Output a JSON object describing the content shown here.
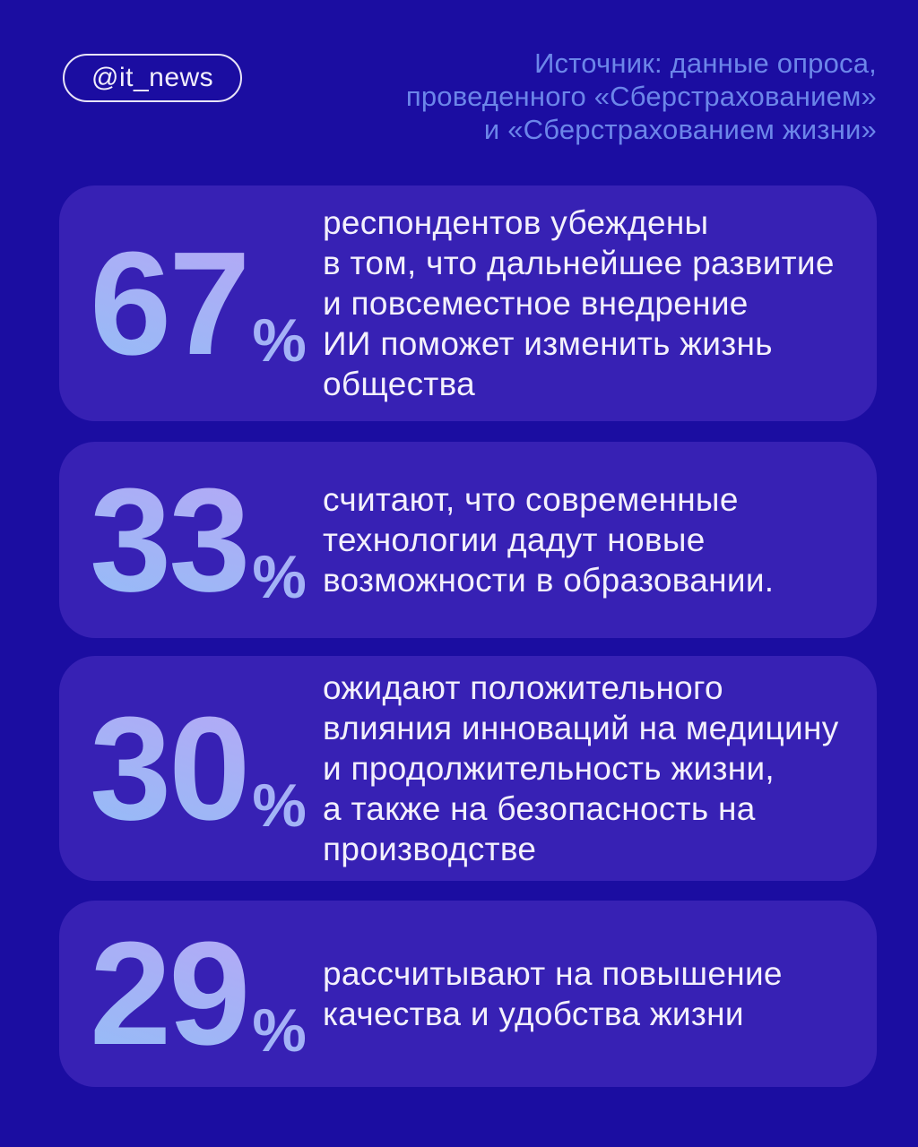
{
  "colors": {
    "background": "#1b0da1",
    "card_background": "#3721b4",
    "body_text": "#f3f0fc",
    "source_text": "#6c86e9",
    "badge_text": "#f1eefb",
    "number_gradient_top": "#b6a7f5",
    "number_gradient_bottom": "#95bcf7"
  },
  "header": {
    "badge_label": "@it_news",
    "source_text": "Источник: данные опроса,\nпроведенного «Сберстрахованием»\nи «Сберстрахованием жизни»"
  },
  "cards": [
    {
      "value": "67",
      "unit": "%",
      "text": "респондентов убеждены\nв том, что дальнейшее развитие\nи повсеместное внедрение\nИИ поможет изменить жизнь\nобщества"
    },
    {
      "value": "33",
      "unit": "%",
      "text": "считают, что современные\nтехнологии дадут новые\nвозможности в образовании."
    },
    {
      "value": "30",
      "unit": "%",
      "text": "ожидают положительного\nвлияния инноваций на медицину\nи продолжительность жизни,\nа также на безопасность на\nпроизводстве"
    },
    {
      "value": "29",
      "unit": "%",
      "text": "рассчитывают на повышение\nкачества и удобства жизни"
    }
  ],
  "chart_data": {
    "type": "table",
    "source": "Источник: данные опроса, проведенного «Сберстрахованием» и «Сберстрахованием жизни»",
    "unit": "%",
    "values": [
      67,
      33,
      30,
      29
    ],
    "categories": [
      "респондентов убеждены в том, что дальнейшее развитие и повсеместное внедрение ИИ поможет изменить жизнь общества",
      "считают, что современные технологии дадут новые возможности в образовании.",
      "ожидают положительного влияния инноваций на медицину и продолжительность жизни, а также на безопасность на производстве",
      "рассчитывают на повышение качества и удобства жизни"
    ]
  }
}
